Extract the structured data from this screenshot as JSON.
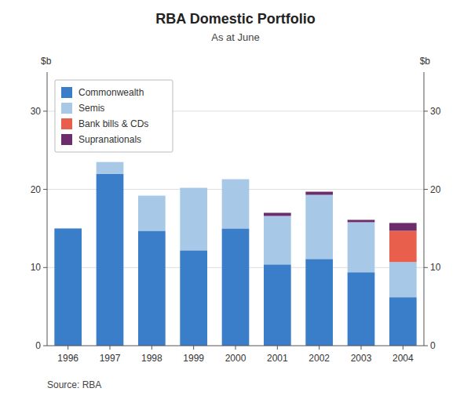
{
  "chart_data": {
    "type": "bar",
    "stacked": true,
    "title": "RBA Domestic Portfolio",
    "subtitle": "As at June",
    "annotations": [
      "Source: RBA"
    ],
    "ylabel": "$b",
    "y2label": "$b",
    "categories": [
      "1996",
      "1997",
      "1998",
      "1999",
      "2000",
      "2001",
      "2002",
      "2003",
      "2004"
    ],
    "series": [
      {
        "name": "Commonwealth",
        "color": "#3A7DC9",
        "values": [
          15.0,
          22.0,
          14.7,
          12.2,
          15.0,
          10.4,
          11.1,
          9.4,
          6.2
        ]
      },
      {
        "name": "Semis",
        "color": "#A8C8E8",
        "values": [
          0.0,
          1.5,
          4.5,
          8.0,
          6.3,
          6.2,
          8.2,
          6.4,
          4.5
        ]
      },
      {
        "name": "Bank bills & CDs",
        "color": "#E8604C",
        "values": [
          0.0,
          0.0,
          0.0,
          0.0,
          0.0,
          0.0,
          0.0,
          0.0,
          4.0
        ]
      },
      {
        "name": "Supranationals",
        "color": "#6B2D6B",
        "values": [
          0.0,
          0.0,
          0.0,
          0.0,
          0.0,
          0.4,
          0.4,
          0.3,
          1.0
        ]
      }
    ],
    "ylim": [
      0,
      35
    ],
    "yticks": [
      0,
      10,
      20,
      30
    ],
    "y2lim": [
      0,
      35
    ],
    "y2ticks": [
      0,
      10,
      20,
      30
    ],
    "grid": true,
    "legend": "upper left"
  }
}
